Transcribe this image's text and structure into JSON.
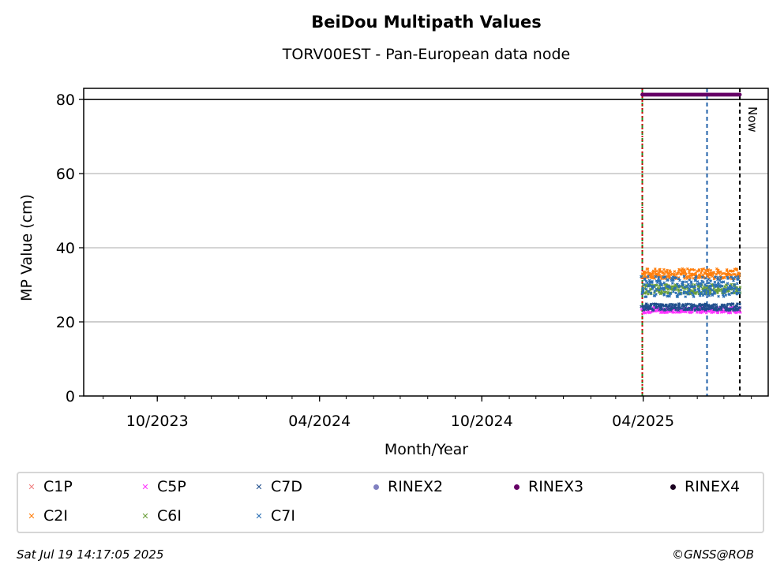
{
  "header": {
    "title": "BeiDou Multipath Values",
    "subtitle": "TORV00EST - Pan-European data node"
  },
  "chart_data": {
    "type": "scatter",
    "title": "BeiDou Multipath Values",
    "subtitle": "TORV00EST - Pan-European data node",
    "xlabel": "Month/Year",
    "ylabel": "MP Value (cm)",
    "x_range": [
      "2023-07-10",
      "2025-08-20"
    ],
    "ylim": [
      0,
      83
    ],
    "x_tick_labels": [
      {
        "date": "2023-10-01",
        "label": "10/2023"
      },
      {
        "date": "2024-04-01",
        "label": "04/2024"
      },
      {
        "date": "2024-10-01",
        "label": "10/2024"
      },
      {
        "date": "2025-04-01",
        "label": "04/2025"
      }
    ],
    "y_ticks": [
      0,
      20,
      40,
      60,
      80
    ],
    "grid": "horizontal",
    "reference_line_y": 80,
    "vertical_lines": [
      {
        "date": "2025-03-31",
        "color": "#228b22",
        "style": "dashed"
      },
      {
        "date": "2025-03-31",
        "color": "#cc0000",
        "style": "dotted"
      },
      {
        "date": "2025-06-12",
        "color": "#1f5fa8",
        "style": "dashed"
      },
      {
        "date": "2025-07-19",
        "color": "#000000",
        "style": "dashed",
        "label": "Now"
      }
    ],
    "data_start": "2025-03-31",
    "data_end": "2025-07-19",
    "series": [
      {
        "name": "C1P",
        "marker": "x",
        "color": "#f08080",
        "level": 0
      },
      {
        "name": "C2I",
        "marker": "x",
        "color": "#ff7f0e",
        "level": 33,
        "spread": 1.4
      },
      {
        "name": "C5P",
        "marker": "x",
        "color": "#ff33ff",
        "level": 23.2,
        "spread": 0.8
      },
      {
        "name": "C6I",
        "marker": "x",
        "color": "#6a9f3a",
        "level": 28.8,
        "spread": 1.3
      },
      {
        "name": "C7D",
        "marker": "x",
        "color": "#1f4e8c",
        "level": 24,
        "spread": 0.9
      },
      {
        "name": "C7I",
        "marker": "x",
        "color": "#2a6fb5",
        "level": 29.5,
        "spread": 2.8
      },
      {
        "name": "RINEX2",
        "marker": "dot",
        "color": "#8080c0",
        "level": 0
      },
      {
        "name": "RINEX3",
        "marker": "dot",
        "color": "#660066",
        "level": 81.3
      },
      {
        "name": "RINEX4",
        "marker": "dot",
        "color": "#1a0020",
        "level": 0
      }
    ]
  },
  "legend": {
    "items": [
      {
        "label": "C1P",
        "marker": "x",
        "color": "#f08080"
      },
      {
        "label": "C5P",
        "marker": "x",
        "color": "#ff33ff"
      },
      {
        "label": "C7D",
        "marker": "x",
        "color": "#1f4e8c"
      },
      {
        "label": "RINEX2",
        "marker": "dot",
        "color": "#8080c0"
      },
      {
        "label": "RINEX3",
        "marker": "dot",
        "color": "#660066"
      },
      {
        "label": "RINEX4",
        "marker": "dot",
        "color": "#1a0020"
      },
      {
        "label": "C2I",
        "marker": "x",
        "color": "#ff7f0e"
      },
      {
        "label": "C6I",
        "marker": "x",
        "color": "#6a9f3a"
      },
      {
        "label": "C7I",
        "marker": "x",
        "color": "#2a6fb5"
      }
    ]
  },
  "footer": {
    "timestamp": "Sat Jul 19 14:17:05 2025",
    "copyright": "©GNSS@ROB"
  }
}
